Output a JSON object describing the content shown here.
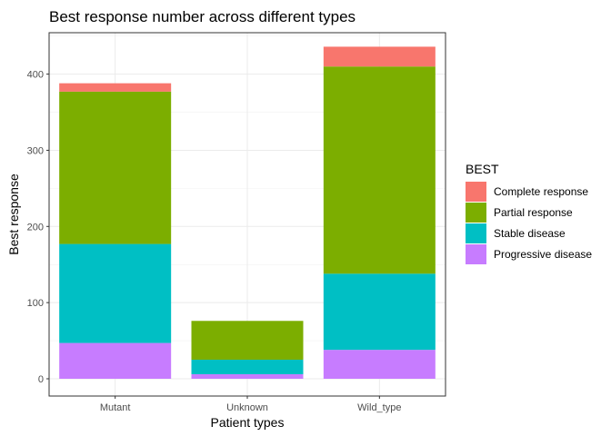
{
  "chart_data": {
    "type": "bar",
    "stacked": true,
    "title": "Best response number across different types",
    "xlabel": "Patient types",
    "ylabel": "Best response",
    "categories": [
      "Mutant",
      "Unknown",
      "Wild_type"
    ],
    "ylim": [
      0,
      455
    ],
    "yticks": [
      0,
      100,
      200,
      300,
      400
    ],
    "grid": true,
    "legend": {
      "title": "BEST",
      "position": "right"
    },
    "series": [
      {
        "name": "Progressive disease",
        "color": "#C77CFF",
        "values": [
          47,
          6,
          38
        ]
      },
      {
        "name": "Stable disease",
        "color": "#00BFC4",
        "values": [
          130,
          19,
          100
        ]
      },
      {
        "name": "Partial response",
        "color": "#7CAE00",
        "values": [
          200,
          51,
          272
        ]
      },
      {
        "name": "Complete response",
        "color": "#F8766D",
        "values": [
          11,
          0,
          26
        ]
      }
    ]
  }
}
